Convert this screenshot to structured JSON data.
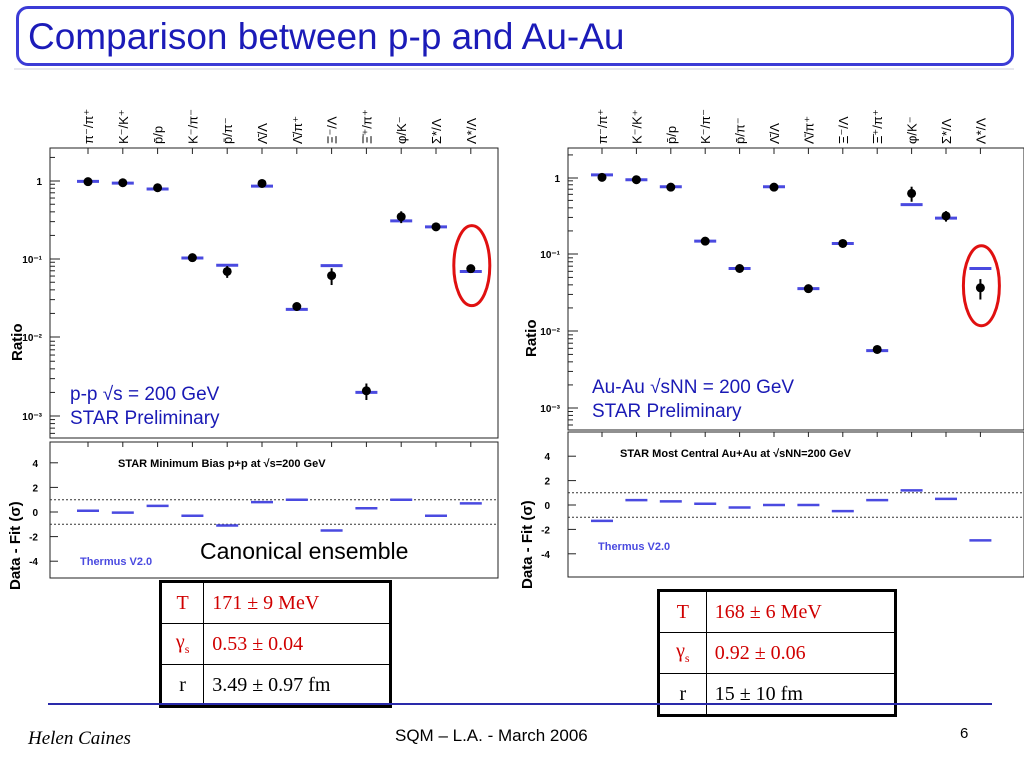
{
  "slide": {
    "title": "Comparison between p-p and Au-Au",
    "author": "Helen Caines",
    "conference": "SQM  – L.A. - March 2006",
    "page_number": "6",
    "canonical_label": "Canonical ensemble",
    "colors": {
      "title": "#1b1bb8",
      "frame": "#3b3bd6",
      "data": "#000000",
      "fit": "#4a4ae0",
      "highlight": "#e01010",
      "param": "#d00000"
    }
  },
  "chart_data": [
    {
      "type": "scatter",
      "panel": "p-p",
      "categories": [
        "π⁻/π⁺",
        "K⁻/K⁺",
        "p̄/p",
        "K⁻/π⁻",
        "p̄/π⁻",
        "Λ̄/Λ",
        "Λ̄/π⁺",
        "Ξ⁻/Λ",
        "Ξ̄⁺/π⁺",
        "φ/K⁻",
        "Σ*/Λ",
        "Λ*/Λ"
      ],
      "ratio": {
        "ylabel": "Ratio",
        "scale": "log",
        "ylim": [
          0.0006,
          3
        ],
        "tick_labels": [
          "1",
          "10⁻¹",
          "10⁻²",
          "10⁻³"
        ],
        "data": [
          0.98,
          0.95,
          0.82,
          0.105,
          0.07,
          0.93,
          0.025,
          0.062,
          0.0021,
          0.35,
          0.26,
          0.076
        ],
        "errors": [
          0.08,
          0.04,
          0.07,
          0.005,
          0.012,
          0.05,
          0.003,
          0.015,
          0.0005,
          0.06,
          0.02,
          0.007
        ],
        "fit": [
          0.99,
          0.94,
          0.79,
          0.104,
          0.084,
          0.86,
          0.023,
          0.083,
          0.002,
          0.31,
          0.26,
          0.07
        ],
        "highlighted_index": 11
      },
      "residuals": {
        "ylabel": "Data  -  Fit  (σ)",
        "ylim": [
          -5,
          5.8
        ],
        "tick_labels": [
          "4",
          "2",
          "0",
          "-2",
          "-4"
        ],
        "values": [
          0.1,
          -0.05,
          0.5,
          -0.3,
          -1.1,
          0.8,
          1.0,
          -1.5,
          0.3,
          1.0,
          -0.3,
          0.7
        ],
        "band": [
          -1,
          1
        ],
        "plot_label": "STAR  Minimum  Bias  p+p  at  √s=200  GeV",
        "model_label": "Thermus  V2.0"
      },
      "annotation": {
        "line1": "p-p √s = 200 GeV",
        "line2": "STAR Preliminary"
      },
      "fit_parameters": [
        {
          "symbol": "T",
          "value": "171 ± 9 MeV"
        },
        {
          "symbol": "γs",
          "value": "0.53 ± 0.04"
        },
        {
          "symbol": "r",
          "value": "3.49 ± 0.97 fm"
        }
      ]
    },
    {
      "type": "scatter",
      "panel": "Au-Au",
      "categories": [
        "π⁻/π⁺",
        "K⁻/K⁺",
        "p̄/p",
        "K⁻/π⁻",
        "p̄/π⁻",
        "Λ̄/Λ",
        "Λ̄/π⁺",
        "Ξ⁻/Λ",
        "Ξ̄⁺/π⁺",
        "φ/K⁻",
        "Σ*/Λ",
        "Λ*/Λ"
      ],
      "ratio": {
        "ylabel": "Ratio",
        "scale": "log",
        "ylim": [
          0.0006,
          3
        ],
        "tick_labels": [
          "1",
          "10⁻¹",
          "10⁻²",
          "10⁻³"
        ],
        "data": [
          1.02,
          0.95,
          0.76,
          0.15,
          0.066,
          0.76,
          0.036,
          0.14,
          0.0058,
          0.63,
          0.32,
          0.037
        ],
        "errors": [
          0.05,
          0.03,
          0.04,
          0.006,
          0.004,
          0.04,
          0.002,
          0.008,
          0.0003,
          0.14,
          0.05,
          0.011
        ],
        "fit": [
          1.1,
          0.95,
          0.77,
          0.15,
          0.066,
          0.77,
          0.036,
          0.14,
          0.0056,
          0.45,
          0.3,
          0.066
        ],
        "highlighted_index": 11
      },
      "residuals": {
        "ylabel": "Data  -  Fit  (σ)",
        "ylim": [
          -5,
          5.8
        ],
        "tick_labels": [
          "4",
          "2",
          "0",
          "-2",
          "-4"
        ],
        "values": [
          -1.3,
          0.4,
          0.3,
          0.1,
          -0.2,
          0.0,
          0.0,
          -0.5,
          0.4,
          1.2,
          0.5,
          -2.9
        ],
        "band": [
          -1,
          1
        ],
        "plot_label": "STAR  Most  Central  Au+Au  at  √sNN=200  GeV",
        "model_label": "Thermus  V2.0"
      },
      "annotation": {
        "line1": "Au-Au √sNN = 200 GeV",
        "line2": "STAR Preliminary"
      },
      "fit_parameters": [
        {
          "symbol": "T",
          "value": "168 ± 6 MeV"
        },
        {
          "symbol": "γs",
          "value": "0.92 ± 0.06"
        },
        {
          "symbol": "r",
          "value": "15 ± 10 fm"
        }
      ]
    }
  ]
}
